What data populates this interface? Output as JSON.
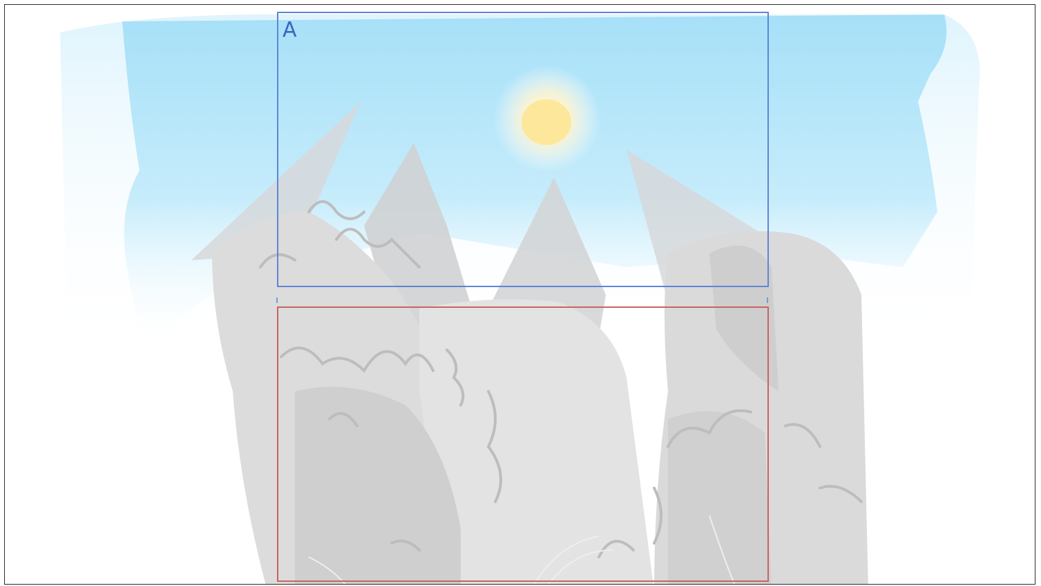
{
  "canvas": {
    "frame_a_label": "A",
    "frame_a_color": "#5f84d6",
    "frame_b_color": "#c9635f",
    "sky_color": "#a8e2f8",
    "sun_color": "#fde79a",
    "sketch_color": "#c9c9c9"
  }
}
